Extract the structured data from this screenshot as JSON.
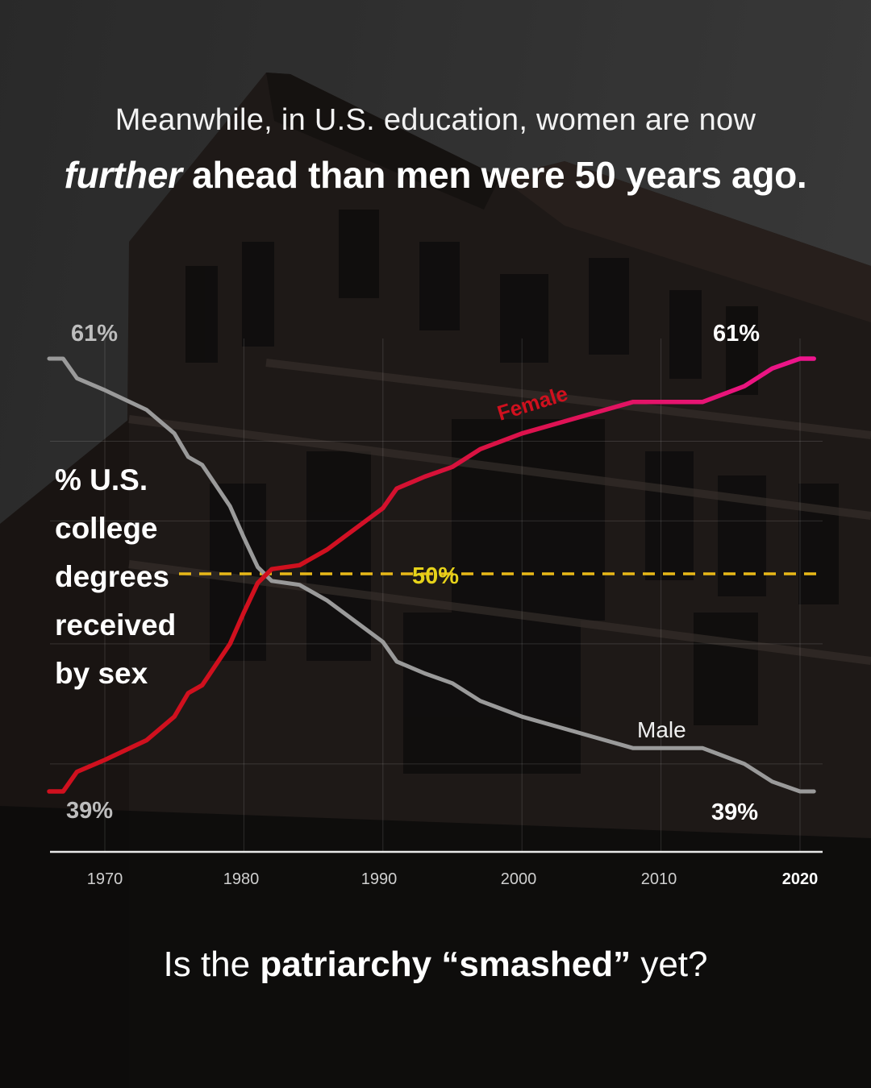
{
  "headline": {
    "line1": "Meanwhile, in U.S. education, women are now",
    "line2_emphasis": "further",
    "line2_rest": " ahead than men were 50 years ago."
  },
  "ylabel_lines": [
    "% U.S.",
    "college",
    "degrees",
    "received",
    "by sex"
  ],
  "annotations": {
    "male_start": "61%",
    "female_start": "39%",
    "female_end": "61%",
    "male_end": "39%",
    "midline": "50%",
    "female_series": "Female",
    "male_series": "Male"
  },
  "footer": {
    "prefix": "Is the ",
    "bold": "patriarchy “smashed”",
    "suffix": " yet?"
  },
  "colors": {
    "female_start": "#d0101e",
    "female_end": "#ee1590",
    "male": "#9a9a9a",
    "midline": "#e8b818",
    "midline_label": "#e6d21a"
  },
  "chart_data": {
    "type": "line",
    "title": "% U.S. college degrees received by sex",
    "xlabel": "",
    "ylabel": "% U.S. college degrees received by sex",
    "x_ticks": [
      "1970",
      "1980",
      "1990",
      "2000",
      "2010",
      "2020"
    ],
    "xlim": [
      1966,
      2021
    ],
    "ylim": [
      39,
      61
    ],
    "reference_line": {
      "y": 50,
      "label": "50%",
      "style": "dashed"
    },
    "grid": true,
    "x": [
      1966,
      1967,
      1968,
      1970,
      1973,
      1975,
      1976,
      1977,
      1979,
      1980,
      1981,
      1982,
      1984,
      1986,
      1990,
      1991,
      1993,
      1995,
      1997,
      2000,
      2003,
      2008,
      2013,
      2016,
      2018,
      2020,
      2021
    ],
    "series": [
      {
        "name": "Female",
        "values": [
          39.0,
          39.0,
          40.0,
          40.6,
          41.6,
          42.8,
          44.0,
          44.4,
          46.5,
          48.1,
          49.6,
          50.3,
          50.5,
          51.3,
          53.4,
          54.4,
          55.0,
          55.5,
          56.4,
          57.2,
          57.8,
          58.8,
          58.8,
          59.6,
          60.5,
          61.0,
          61.0
        ]
      },
      {
        "name": "Male",
        "values": [
          61.0,
          61.0,
          60.0,
          59.4,
          58.4,
          57.2,
          56.0,
          55.6,
          53.5,
          51.9,
          50.4,
          49.7,
          49.5,
          48.7,
          46.6,
          45.6,
          45.0,
          44.5,
          43.6,
          42.8,
          42.2,
          41.2,
          41.2,
          40.4,
          39.5,
          39.0,
          39.0
        ]
      }
    ],
    "labels": {
      "female_start": "39%",
      "female_end": "61%",
      "male_start": "61%",
      "male_end": "39%"
    }
  }
}
